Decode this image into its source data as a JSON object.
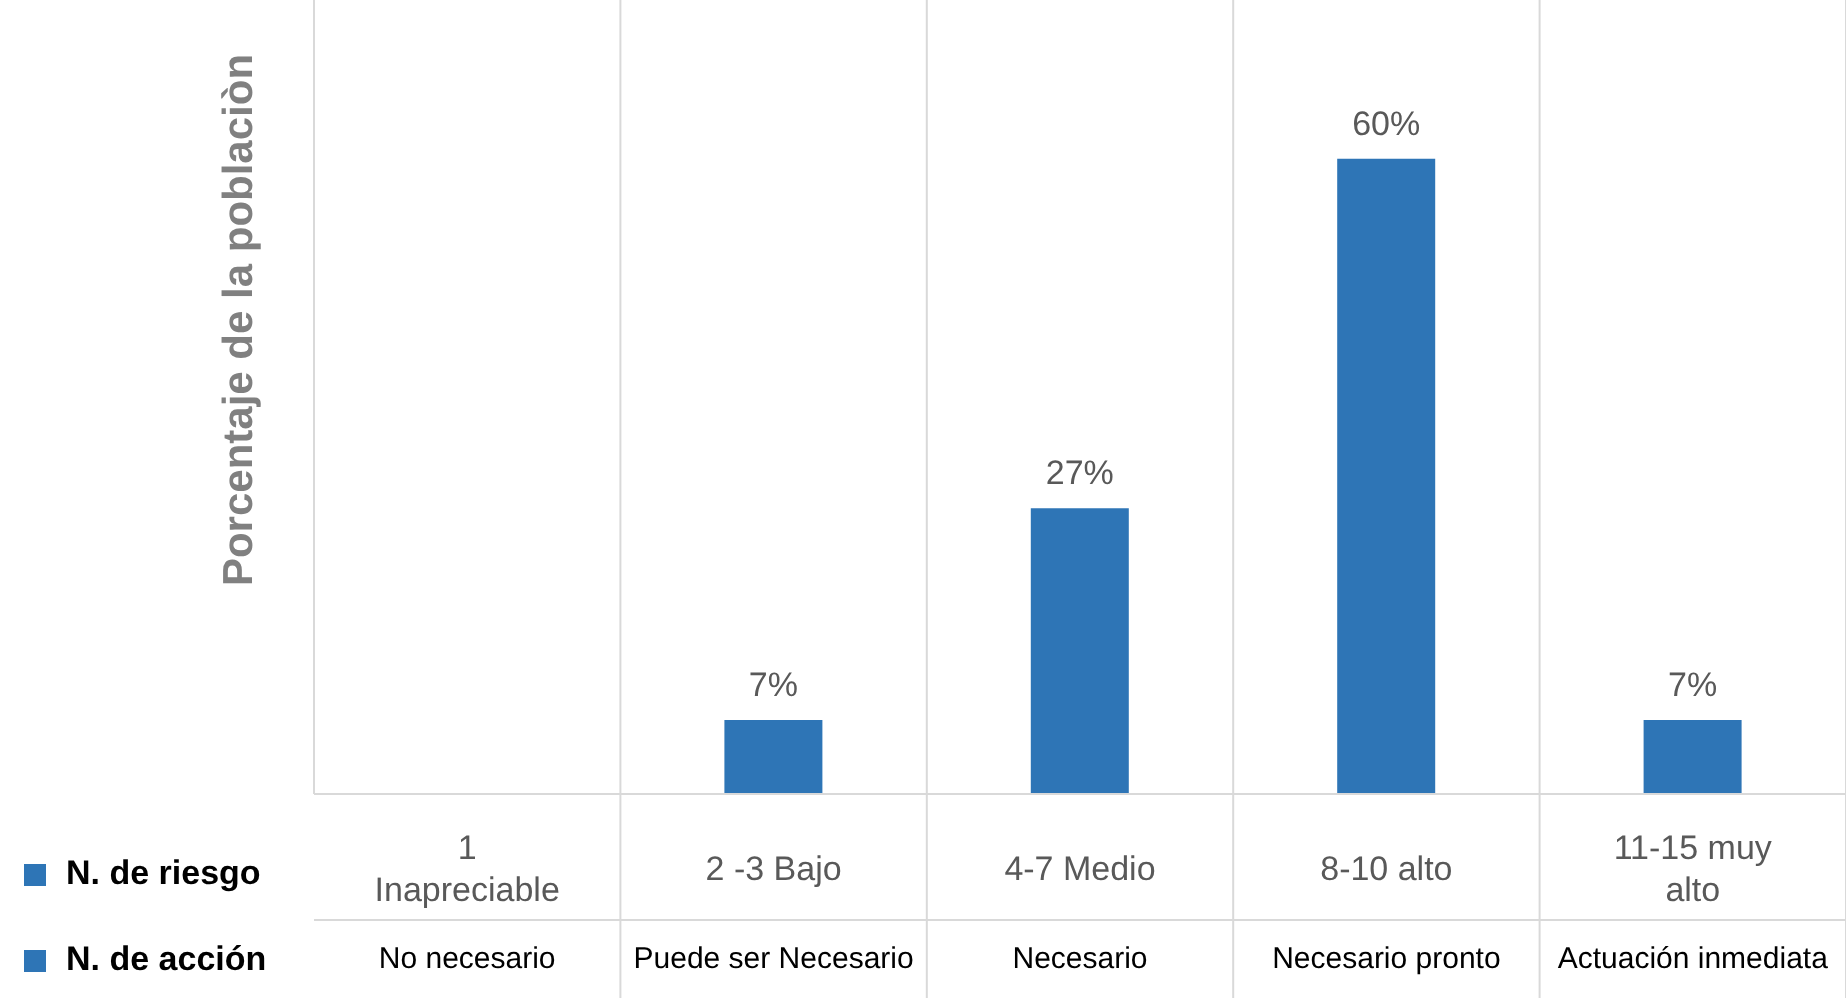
{
  "chart_data": {
    "type": "bar",
    "ylabel": "Porcentaje de la poblaciòn",
    "categories": [
      "1 Inapreciable",
      "2 -3 Bajo",
      "4-7 Medio",
      "8-10 alto",
      "11-15 muy alto"
    ],
    "series": [
      {
        "name": "N. de riesgo",
        "color": "#2e75b6",
        "values": [
          null,
          7,
          27,
          60,
          7
        ],
        "value_labels": [
          null,
          "7%",
          "27%",
          "60%",
          "7%"
        ]
      }
    ],
    "ylim": [
      0,
      75
    ],
    "tick_labels": "x",
    "grid": "x",
    "legend": "bottom left",
    "annotations": [
      "N. de acción",
      "No necesario",
      "Puede ser Necesario",
      "Necesario",
      "Necesario pronto",
      "Actuación inmediata"
    ]
  }
}
